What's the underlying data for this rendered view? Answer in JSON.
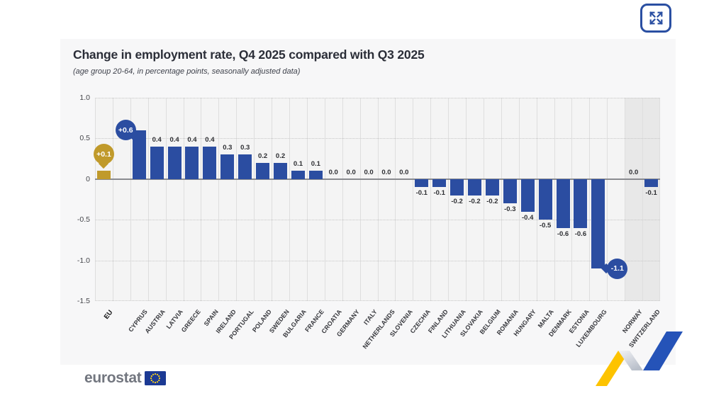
{
  "page": {
    "fullscreen_button": {
      "icon": "expand-arrows-icon"
    },
    "logo": {
      "text": "eurostat"
    }
  },
  "colors": {
    "bar_blue": "#2b4da1",
    "eu_gold": "#c09a2b",
    "shaded_column": "#e8e8e8",
    "zero_line": "#8a8b90",
    "accent_blue": "#2a4fa2",
    "ribbon_yellow": "#fdc300",
    "ribbon_blue": "#2553b8",
    "ribbon_silver": "#cdd2db",
    "flag_blue": "#1c3a94",
    "flag_star_yellow": "#ffd617"
  },
  "chart_data": {
    "type": "bar",
    "title": "Change in employment rate, Q4 2025 compared with Q3 2025",
    "subtitle": "(age group 20-64, in percentage points, seasonally adjusted data)",
    "xlabel": "",
    "ylabel": "",
    "ylim": [
      -1.5,
      1.0
    ],
    "yticks": [
      "1.0",
      "0.5",
      "0",
      "-0.5",
      "-1.0",
      "-1.5"
    ],
    "grid": {
      "horizontal": "dotted",
      "vertical": "per-column",
      "zero_line": true
    },
    "legend": null,
    "bars": [
      {
        "label": "EU",
        "value": 0.1,
        "value_label": null,
        "color": "gold",
        "bold_label": true,
        "gap_after": true,
        "badge": {
          "text": "+0.1",
          "color": "gold",
          "placement": "above"
        }
      },
      {
        "label": "CYPRUS",
        "value": 0.6,
        "value_label": null,
        "badge": {
          "text": "+0.6",
          "color": "blue",
          "placement": "upper-left"
        }
      },
      {
        "label": "AUSTRIA",
        "value": 0.4,
        "value_label": "0.4"
      },
      {
        "label": "LATVIA",
        "value": 0.4,
        "value_label": "0.4"
      },
      {
        "label": "GREECE",
        "value": 0.4,
        "value_label": "0.4"
      },
      {
        "label": "SPAIN",
        "value": 0.4,
        "value_label": "0.4"
      },
      {
        "label": "IRELAND",
        "value": 0.3,
        "value_label": "0.3"
      },
      {
        "label": "PORTUGAL",
        "value": 0.3,
        "value_label": "0.3"
      },
      {
        "label": "POLAND",
        "value": 0.2,
        "value_label": "0.2"
      },
      {
        "label": "SWEDEN",
        "value": 0.2,
        "value_label": "0.2"
      },
      {
        "label": "BULGARIA",
        "value": 0.1,
        "value_label": "0.1"
      },
      {
        "label": "FRANCE",
        "value": 0.1,
        "value_label": "0.1"
      },
      {
        "label": "CROATIA",
        "value": 0.0,
        "value_label": "0.0"
      },
      {
        "label": "GERMANY",
        "value": 0.0,
        "value_label": "0.0"
      },
      {
        "label": "ITALY",
        "value": 0.0,
        "value_label": "0.0"
      },
      {
        "label": "NETHERLANDS",
        "value": 0.0,
        "value_label": "0.0"
      },
      {
        "label": "SLOVENIA",
        "value": 0.0,
        "value_label": "0.0"
      },
      {
        "label": "CZECHIA",
        "value": -0.1,
        "value_label": "-0.1"
      },
      {
        "label": "FINLAND",
        "value": -0.1,
        "value_label": "-0.1"
      },
      {
        "label": "LITHUANIA",
        "value": -0.2,
        "value_label": "-0.2"
      },
      {
        "label": "SLOVAKIA",
        "value": -0.2,
        "value_label": "-0.2"
      },
      {
        "label": "BELGIUM",
        "value": -0.2,
        "value_label": "-0.2"
      },
      {
        "label": "ROMANIA",
        "value": -0.3,
        "value_label": "-0.3"
      },
      {
        "label": "HUNGARY",
        "value": -0.4,
        "value_label": "-0.4"
      },
      {
        "label": "MALTA",
        "value": -0.5,
        "value_label": "-0.5"
      },
      {
        "label": "DENMARK",
        "value": -0.6,
        "value_label": "-0.6"
      },
      {
        "label": "ESTONIA",
        "value": -0.6,
        "value_label": "-0.6"
      },
      {
        "label": "LUXEMBOURG",
        "value": -1.1,
        "value_label": null,
        "gap_after": true,
        "badge": {
          "text": "-1.1",
          "color": "blue",
          "placement": "lower-right"
        }
      },
      {
        "label": "NORWAY",
        "value": 0.0,
        "value_label": "0.0",
        "shaded": true
      },
      {
        "label": "SWITZERLAND",
        "value": -0.1,
        "value_label": "-0.1",
        "shaded": true
      }
    ]
  }
}
